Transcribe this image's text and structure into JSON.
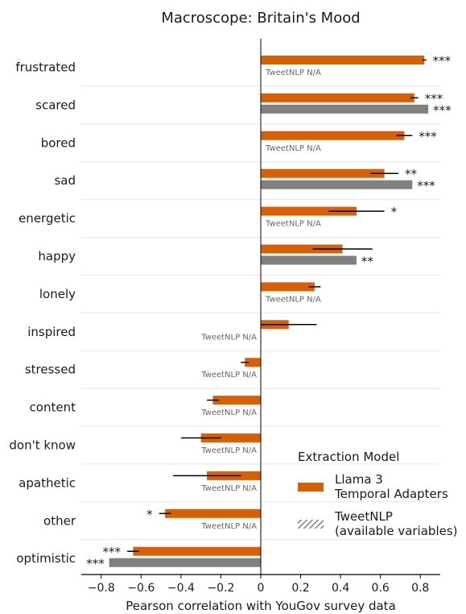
{
  "chart_data": {
    "type": "bar",
    "orientation": "horizontal",
    "title": "Macroscope: Britain's Mood",
    "xlabel": "Pearson correlation with YouGov survey data",
    "xlim": [
      -0.9,
      0.9
    ],
    "xticks": [
      -0.8,
      -0.6,
      -0.4,
      -0.2,
      0,
      0.2,
      0.4,
      0.6,
      0.8
    ],
    "xtick_labels": [
      "−0.8",
      "−0.6",
      "−0.4",
      "−0.2",
      "0",
      "0.2",
      "0.4",
      "0.6",
      "0.8"
    ],
    "categories": [
      "frustrated",
      "scared",
      "bored",
      "sad",
      "energetic",
      "happy",
      "lonely",
      "inspired",
      "stressed",
      "content",
      "don't know",
      "apathetic",
      "other",
      "optimistic"
    ],
    "series": [
      {
        "name": "Llama 3 Temporal Adapters",
        "color": "#d95f02",
        "values": [
          0.82,
          0.77,
          0.72,
          0.62,
          0.48,
          0.41,
          0.27,
          0.14,
          -0.08,
          -0.24,
          -0.3,
          -0.27,
          -0.48,
          -0.64
        ],
        "error": [
          0.01,
          0.02,
          0.04,
          0.07,
          0.14,
          0.15,
          0.03,
          0.14,
          0.02,
          0.03,
          0.1,
          0.17,
          0.03,
          0.03
        ],
        "significance": [
          "***",
          "***",
          "***",
          "**",
          "*",
          "",
          "",
          "",
          "",
          "",
          "",
          "",
          "*",
          "***"
        ]
      },
      {
        "name": "TweetNLP (available variables)",
        "color": "#808080",
        "values": [
          null,
          0.84,
          null,
          0.76,
          null,
          0.48,
          null,
          null,
          null,
          null,
          null,
          null,
          null,
          -0.76
        ],
        "significance": [
          "",
          "***",
          "",
          "***",
          "",
          "**",
          "",
          "",
          "",
          "",
          "",
          "",
          "",
          "***"
        ]
      }
    ],
    "na_label": "TweetNLP N/A",
    "legend": {
      "title": "Extraction Model",
      "placement": "lower-right",
      "entries": [
        {
          "line1": "Llama 3",
          "line2": "Temporal Adapters",
          "color": "#d95f02",
          "style": "solid"
        },
        {
          "line1": "TweetNLP",
          "line2": "(available variables)",
          "color": "#808080",
          "style": "hatched"
        }
      ]
    },
    "grid": "horizontal separators"
  }
}
